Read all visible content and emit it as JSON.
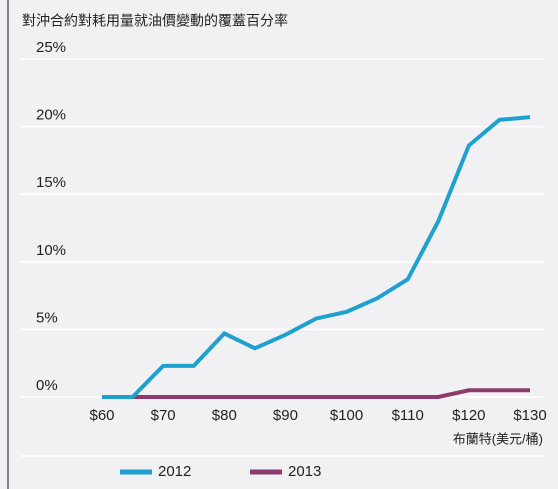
{
  "chart_data": {
    "type": "line",
    "title": "對沖合約對耗用量就油價變動的覆蓋百分率",
    "x_label": "布蘭特(美元/桶)",
    "x": [
      60,
      65,
      70,
      75,
      80,
      85,
      90,
      95,
      100,
      105,
      110,
      115,
      120,
      125,
      130
    ],
    "series": [
      {
        "name": "2012",
        "color": "#1fa1cf",
        "values": [
          0,
          0,
          2.3,
          2.3,
          4.7,
          3.6,
          4.6,
          5.8,
          6.3,
          7.3,
          8.7,
          13,
          18.6,
          20.5,
          20.7
        ]
      },
      {
        "name": "2013",
        "color": "#8d3a6c",
        "values": [
          null,
          0,
          0,
          0,
          0,
          0,
          0,
          0,
          0,
          0,
          0,
          0,
          0.5,
          0.5,
          0.5
        ]
      }
    ],
    "xlim": [
      60,
      130
    ],
    "xticks": [
      {
        "value": 60,
        "label": "$60"
      },
      {
        "value": 70,
        "label": "$70"
      },
      {
        "value": 80,
        "label": "$80"
      },
      {
        "value": 90,
        "label": "$90"
      },
      {
        "value": 100,
        "label": "$100"
      },
      {
        "value": 110,
        "label": "$110"
      },
      {
        "value": 120,
        "label": "$120"
      },
      {
        "value": 130,
        "label": "$130"
      }
    ],
    "ylim": [
      0,
      25
    ],
    "yticks": [
      {
        "value": 0,
        "label": "0%"
      },
      {
        "value": 5,
        "label": "5%"
      },
      {
        "value": 10,
        "label": "10%"
      },
      {
        "value": 15,
        "label": "15%"
      },
      {
        "value": 20,
        "label": "20%"
      },
      {
        "value": 25,
        "label": "25%"
      }
    ],
    "grid": true
  }
}
